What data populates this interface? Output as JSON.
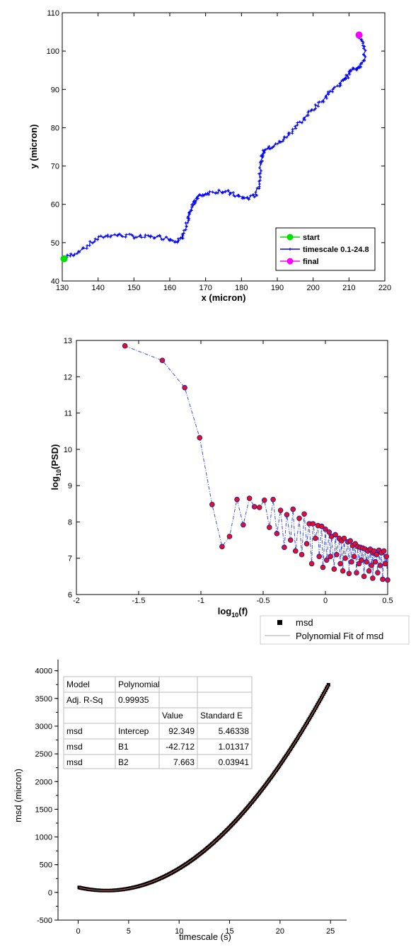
{
  "chart_data": [
    {
      "type": "line",
      "xlabel": "x (micron)",
      "ylabel": "y (micron)",
      "xlim": [
        130,
        220
      ],
      "ylim": [
        40,
        110
      ],
      "xticks": [
        "130",
        "140",
        "150",
        "160",
        "170",
        "180",
        "190",
        "200",
        "210",
        "220"
      ],
      "yticks": [
        "40",
        "50",
        "60",
        "70",
        "80",
        "90",
        "100",
        "110"
      ],
      "grid": false,
      "legend_position": "bottom-right",
      "series": [
        {
          "name": "start",
          "color": "#00e000",
          "points": [
            [
              130.5,
              45.8
            ]
          ]
        },
        {
          "name": "timescale 0.1-24.8",
          "color": "#0000ff",
          "points": [
            [
              130.5,
              45.8
            ],
            [
              133,
              47
            ],
            [
              136,
              48.5
            ],
            [
              139,
              50.5
            ],
            [
              142,
              51.8
            ],
            [
              145,
              52
            ],
            [
              148,
              51.8
            ],
            [
              151,
              51.5
            ],
            [
              154,
              51.5
            ],
            [
              157,
              51.5
            ],
            [
              160,
              51
            ],
            [
              162,
              50.5
            ],
            [
              163.5,
              51
            ],
            [
              164.5,
              53.5
            ],
            [
              165,
              56
            ],
            [
              165.5,
              58
            ],
            [
              166.5,
              60
            ],
            [
              167.5,
              61.5
            ],
            [
              169,
              62.5
            ],
            [
              171,
              63
            ],
            [
              174,
              63.5
            ],
            [
              176,
              63.2
            ],
            [
              178,
              62.5
            ],
            [
              180,
              61.8
            ],
            [
              182,
              61.5
            ],
            [
              184,
              62.5
            ],
            [
              185,
              65
            ],
            [
              185.3,
              68
            ],
            [
              185.5,
              71.5
            ],
            [
              186,
              73.5
            ],
            [
              187,
              74.5
            ],
            [
              189,
              75
            ],
            [
              191,
              76.5
            ],
            [
              193,
              78
            ],
            [
              195,
              80
            ],
            [
              197,
              82
            ],
            [
              199,
              84
            ],
            [
              201,
              85.5
            ],
            [
              203,
              87.5
            ],
            [
              205,
              89.5
            ],
            [
              207,
              91
            ],
            [
              208.5,
              92.5
            ],
            [
              209.5,
              93.5
            ],
            [
              210.5,
              95
            ],
            [
              212,
              95.5
            ],
            [
              213,
              96
            ],
            [
              214,
              97
            ],
            [
              214.5,
              100
            ],
            [
              213.5,
              102.5
            ],
            [
              212.8,
              104.2
            ]
          ]
        },
        {
          "name": "final",
          "color": "#ff00ff",
          "points": [
            [
              212.8,
              104.2
            ]
          ]
        }
      ]
    },
    {
      "type": "line",
      "xlabel": "log10(f)",
      "ylabel": "log10(PSD)",
      "xlim": [
        -2,
        0.5
      ],
      "ylim": [
        6,
        13
      ],
      "xticks": [
        "-2",
        "-1.5",
        "-1",
        "-0.5",
        "0",
        "0.5"
      ],
      "yticks": [
        "6",
        "7",
        "8",
        "9",
        "10",
        "11",
        "12",
        "13"
      ],
      "grid": false,
      "marker_color": "#e0102a",
      "marker_edge": "#1a1aa0",
      "line_color": "#3a50e0",
      "series": [
        {
          "name": "",
          "x": [
            -1.61,
            -1.31,
            -1.13,
            -1.01,
            -0.91,
            -0.83,
            -0.77,
            -0.71,
            -0.66,
            -0.61,
            -0.57,
            -0.53,
            -0.49,
            -0.45,
            -0.42,
            -0.39,
            -0.36,
            -0.33,
            -0.31,
            -0.28,
            -0.26,
            -0.24,
            -0.21,
            -0.19,
            -0.17,
            -0.15,
            -0.13,
            -0.11,
            -0.1,
            -0.08,
            -0.06,
            -0.05,
            -0.03,
            -0.02,
            0.0,
            0.01,
            0.03,
            0.04,
            0.05,
            0.07,
            0.08,
            0.09,
            0.11,
            0.12,
            0.13,
            0.14,
            0.15,
            0.16,
            0.18,
            0.19,
            0.2,
            0.21,
            0.22,
            0.23,
            0.24,
            0.25,
            0.26,
            0.27,
            0.28,
            0.29,
            0.3,
            0.31,
            0.32,
            0.33,
            0.34,
            0.35,
            0.36,
            0.37,
            0.38,
            0.38,
            0.39,
            0.4,
            0.41,
            0.42,
            0.43,
            0.44,
            0.45,
            0.46,
            0.47,
            0.48,
            0.49,
            0.5
          ],
          "y": [
            12.85,
            12.45,
            11.7,
            10.32,
            8.48,
            7.32,
            7.6,
            8.62,
            7.92,
            8.65,
            8.42,
            8.4,
            8.6,
            7.85,
            8.62,
            7.68,
            8.32,
            7.3,
            8.2,
            7.5,
            8.35,
            7.2,
            8.1,
            7.1,
            8.22,
            7.4,
            7.95,
            6.85,
            7.95,
            7.55,
            7.9,
            7.05,
            7.88,
            6.75,
            7.8,
            6.95,
            7.72,
            7.05,
            7.6,
            6.7,
            7.65,
            7.1,
            7.55,
            6.85,
            7.48,
            6.65,
            7.55,
            7.0,
            7.45,
            6.58,
            7.48,
            6.9,
            7.35,
            7.05,
            7.4,
            6.6,
            7.32,
            6.85,
            7.3,
            6.95,
            7.28,
            6.5,
            7.25,
            6.9,
            7.2,
            6.65,
            7.25,
            6.8,
            7.15,
            6.45,
            7.2,
            6.9,
            7.1,
            6.6,
            7.22,
            6.8,
            7.15,
            6.42,
            7.2,
            6.85,
            7.05,
            6.4
          ]
        }
      ]
    },
    {
      "type": "scatter",
      "xlabel": "timescale (s)",
      "ylabel": "msd (micron)",
      "xlim": [
        -2,
        28
      ],
      "ylim": [
        -500,
        4200
      ],
      "xticks": [
        "0",
        "5",
        "10",
        "15",
        "20",
        "25"
      ],
      "yticks": [
        "-500",
        "0",
        "500",
        "1000",
        "1500",
        "2000",
        "2500",
        "3000",
        "3500",
        "4000"
      ],
      "grid": false,
      "series": [
        {
          "name": "msd",
          "color": "#000000",
          "x_range": [
            0.1,
            24.8
          ]
        },
        {
          "name": "Polynomial Fit of msd",
          "color": "#c06060",
          "coefficients": [
            92.349,
            -42.712,
            7.663
          ]
        }
      ],
      "fit_table": {
        "rows": [
          [
            "Model",
            "Polynomial",
            ""
          ],
          [
            "Adj. R-Sq",
            "0.99935",
            ""
          ],
          [
            "",
            "",
            "Value",
            "Standard E"
          ],
          [
            "msd",
            "Intercep",
            "92.349",
            "5.46338"
          ],
          [
            "msd",
            "B1",
            "-42.712",
            "1.01317"
          ],
          [
            "msd",
            "B2",
            "7.663",
            "0.03941"
          ]
        ]
      }
    }
  ]
}
